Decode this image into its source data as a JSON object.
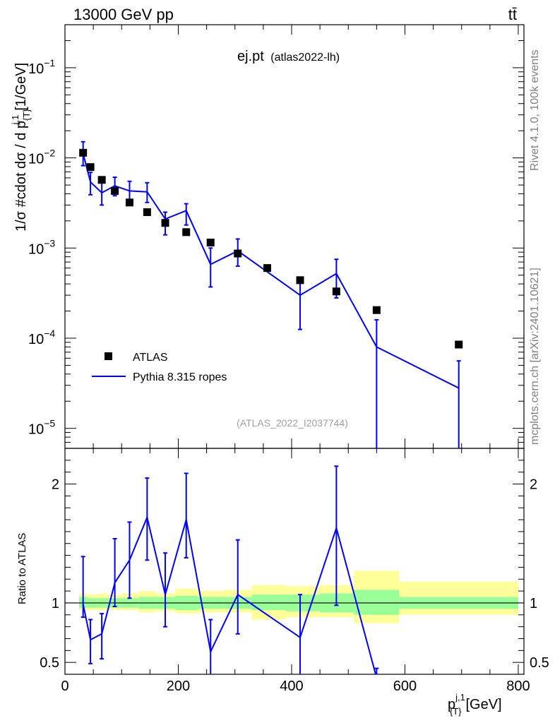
{
  "header": {
    "energy": "13000 GeV pp",
    "process": "tt̄"
  },
  "side_labels": {
    "rivet": "Rivet 4.1.0,  100k events",
    "mcplots": "mcplots.cern.ch [arXiv:2401.10621]"
  },
  "chart_data": {
    "type": "scatter",
    "title": "ej.pt",
    "subtitle": "(atlas2022-lh)",
    "analysis_id": "(ATLAS_2022_I2037744)",
    "xlabel": "p_{T}^{j,1} [GeV]",
    "xlabel_main": "p",
    "xlabel_sup": "j,1",
    "xlabel_sub": "{T}",
    "xlabel_unit": "[GeV]",
    "ylabel": "1/σ #cdot dσ / d p_{T}^{j,1} [1/GeV]",
    "ylabel_main": "1/σ  #cdot dσ / d p",
    "ylabel_sup": "j,1",
    "ylabel_sub": "{T}",
    "ylabel_unit": "[1/GeV]",
    "ratio_ylabel": "Ratio to ATLAS",
    "xlim": [
      0,
      810
    ],
    "ylim_log": [
      6e-06,
      0.3
    ],
    "ratio_ylim": [
      0.4,
      2.3
    ],
    "x_ticks": [
      0,
      200,
      400,
      600,
      800
    ],
    "x_tick_labels": [
      "0",
      "200",
      "400",
      "600",
      "800"
    ],
    "y_ticks": [
      1e-05,
      0.0001,
      0.001,
      0.01,
      0.1
    ],
    "y_tick_bases": [
      "10",
      "10",
      "10",
      "10",
      "10"
    ],
    "y_tick_exps": [
      "−5",
      "−4",
      "−3",
      "−2",
      "−1"
    ],
    "ratio_ticks": [
      0.5,
      1,
      2
    ],
    "ratio_tick_labels": [
      "0.5",
      "1",
      "2"
    ],
    "legend": [
      {
        "label": "ATLAS",
        "kind": "marker",
        "color": "#000000"
      },
      {
        "label": "Pythia 8.315 ropes",
        "kind": "line",
        "color": "#0000ff"
      }
    ],
    "bins": [
      {
        "lo": 25,
        "hi": 40
      },
      {
        "lo": 40,
        "hi": 55
      },
      {
        "lo": 55,
        "hi": 75
      },
      {
        "lo": 75,
        "hi": 100
      },
      {
        "lo": 100,
        "hi": 130
      },
      {
        "lo": 130,
        "hi": 160
      },
      {
        "lo": 160,
        "hi": 195
      },
      {
        "lo": 195,
        "hi": 235
      },
      {
        "lo": 235,
        "hi": 280
      },
      {
        "lo": 280,
        "hi": 330
      },
      {
        "lo": 330,
        "hi": 390
      },
      {
        "lo": 390,
        "hi": 450
      },
      {
        "lo": 450,
        "hi": 510
      },
      {
        "lo": 510,
        "hi": 590
      },
      {
        "lo": 590,
        "hi": 800
      }
    ],
    "series": [
      {
        "name": "ATLAS",
        "color": "#000000",
        "x": [
          32,
          45,
          65,
          88,
          114,
          145,
          177,
          214,
          257,
          305,
          357,
          415,
          479,
          550,
          695
        ],
        "values": [
          0.0114,
          0.0079,
          0.0057,
          0.0043,
          0.0032,
          0.0025,
          0.0019,
          0.0015,
          0.00115,
          0.00087,
          0.0006,
          0.00044,
          0.00033,
          0.000205,
          8.5e-05
        ]
      },
      {
        "name": "Pythia 8.315 ropes",
        "color": "#0000ff",
        "x": [
          32,
          45,
          65,
          88,
          114,
          145,
          177,
          214,
          257,
          305,
          415,
          479,
          550,
          695
        ],
        "values": [
          0.0112,
          0.0054,
          0.0041,
          0.0049,
          0.0043,
          0.0042,
          0.0021,
          0.0026,
          0.00066,
          0.00093,
          0.0003,
          0.00052,
          8e-05,
          2.8e-05
        ],
        "err_lo": [
          0.0082,
          0.0039,
          0.003,
          0.0038,
          0.0032,
          0.0032,
          0.0014,
          0.0018,
          0.00037,
          0.00063,
          0.000125,
          0.00028,
          1e-07,
          1e-07
        ],
        "err_hi": [
          0.0151,
          0.0069,
          0.0053,
          0.0061,
          0.0055,
          0.0053,
          0.0025,
          0.0031,
          0.001,
          0.00126,
          0.000475,
          0.00075,
          0.00016,
          5.6e-05
        ]
      }
    ],
    "ratio": {
      "x": [
        32,
        45,
        65,
        88,
        114,
        145,
        177,
        214,
        257,
        305,
        415,
        479,
        550
      ],
      "values": [
        0.99,
        0.69,
        0.74,
        1.17,
        1.36,
        1.72,
        1.07,
        1.7,
        0.59,
        1.07,
        0.71,
        1.63,
        0.37
      ],
      "err_lo": [
        0.88,
        0.49,
        0.53,
        0.97,
        1.04,
        1.36,
        0.8,
        1.38,
        0.4,
        0.74,
        0.38,
        0.98,
        0.3
      ],
      "err_hi": [
        1.39,
        0.86,
        0.91,
        1.54,
        1.68,
        2.05,
        1.42,
        2.09,
        0.86,
        1.53,
        1.07,
        2.15,
        0.45
      ],
      "band_inner": [
        [
          0.96,
          1.05
        ],
        [
          0.96,
          1.04
        ],
        [
          0.96,
          1.04
        ],
        [
          0.96,
          1.04
        ],
        [
          0.96,
          1.04
        ],
        [
          0.95,
          1.05
        ],
        [
          0.95,
          1.05
        ],
        [
          0.94,
          1.06
        ],
        [
          0.95,
          1.05
        ],
        [
          0.95,
          1.05
        ],
        [
          0.94,
          1.07
        ],
        [
          0.93,
          1.07
        ],
        [
          0.92,
          1.08
        ],
        [
          0.9,
          1.11
        ],
        [
          0.95,
          1.05
        ]
      ],
      "band_outer": [
        [
          0.94,
          1.08
        ],
        [
          0.94,
          1.07
        ],
        [
          0.94,
          1.08
        ],
        [
          0.94,
          1.07
        ],
        [
          0.94,
          1.08
        ],
        [
          0.92,
          1.1
        ],
        [
          0.93,
          1.08
        ],
        [
          0.91,
          1.12
        ],
        [
          0.92,
          1.1
        ],
        [
          0.92,
          1.11
        ],
        [
          0.86,
          1.15
        ],
        [
          0.88,
          1.14
        ],
        [
          0.88,
          1.15
        ],
        [
          0.83,
          1.27
        ],
        [
          0.9,
          1.18
        ]
      ]
    }
  }
}
